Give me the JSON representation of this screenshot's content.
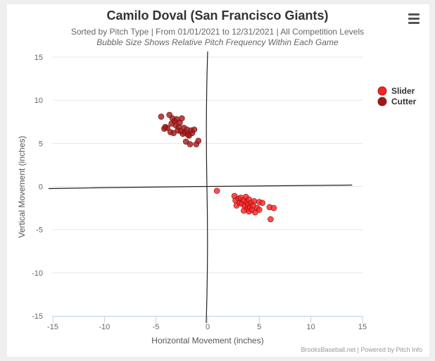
{
  "title": "Camilo Doval (San Francisco Giants)",
  "subtitle": "Sorted by Pitch Type | From 01/01/2021 to 12/31/2021 | All Competition Levels",
  "subtitle2": "Bubble Size Shows Relative Pitch Frequency Within Each Game",
  "credits": "BrooksBaseball.net | Powered by Pitch Info",
  "menu_icon": "hamburger-menu-icon",
  "chart_data": {
    "type": "scatter",
    "xlabel": "Horizontal Movement (inches)",
    "ylabel": "Vertical Movement (inches)",
    "xlim": [
      -15,
      15
    ],
    "ylim": [
      -15,
      15
    ],
    "xticks": [
      "-15",
      "-10",
      "-5",
      "0",
      "5",
      "10",
      "15"
    ],
    "yticks": [
      "15",
      "10",
      "5",
      "0",
      "-5",
      "-10",
      "-15"
    ],
    "legend_position": "top-right",
    "series": [
      {
        "name": "Slider",
        "color": "#ff2020",
        "points": [
          [
            0.9,
            -0.5
          ],
          [
            2.6,
            -1.1
          ],
          [
            2.7,
            -1.6
          ],
          [
            2.8,
            -2.2
          ],
          [
            3.0,
            -1.4
          ],
          [
            3.1,
            -1.9
          ],
          [
            3.2,
            -1.3
          ],
          [
            3.3,
            -2.0
          ],
          [
            3.5,
            -1.6
          ],
          [
            3.6,
            -2.3
          ],
          [
            3.7,
            -1.2
          ],
          [
            3.8,
            -1.8
          ],
          [
            3.8,
            -2.6
          ],
          [
            3.9,
            -2.1
          ],
          [
            4.0,
            -1.5
          ],
          [
            4.0,
            -2.9
          ],
          [
            4.1,
            -2.4
          ],
          [
            4.2,
            -1.9
          ],
          [
            4.3,
            -2.7
          ],
          [
            4.4,
            -2.2
          ],
          [
            4.5,
            -1.7
          ],
          [
            4.6,
            -3.0
          ],
          [
            4.8,
            -2.5
          ],
          [
            5.0,
            -1.8
          ],
          [
            5.0,
            -2.7
          ],
          [
            5.3,
            -1.9
          ],
          [
            6.0,
            -2.4
          ],
          [
            6.4,
            -2.5
          ],
          [
            6.1,
            -3.8
          ],
          [
            3.5,
            -2.8
          ]
        ]
      },
      {
        "name": "Cutter",
        "color": "#a01818",
        "points": [
          [
            -4.5,
            8.1
          ],
          [
            -4.2,
            6.7
          ],
          [
            -3.9,
            6.8
          ],
          [
            -3.7,
            8.3
          ],
          [
            -3.6,
            6.3
          ],
          [
            -3.5,
            7.3
          ],
          [
            -3.4,
            7.9
          ],
          [
            -3.3,
            6.2
          ],
          [
            -3.2,
            7.6
          ],
          [
            -3.1,
            7.1
          ],
          [
            -3.0,
            7.8
          ],
          [
            -2.9,
            6.5
          ],
          [
            -2.8,
            6.9
          ],
          [
            -2.7,
            7.4
          ],
          [
            -2.6,
            6.4
          ],
          [
            -2.5,
            7.9
          ],
          [
            -2.4,
            6.1
          ],
          [
            -2.3,
            6.8
          ],
          [
            -2.2,
            6.3
          ],
          [
            -2.1,
            5.2
          ],
          [
            -2.0,
            6.6
          ],
          [
            -1.9,
            6.0
          ],
          [
            -1.8,
            5.9
          ],
          [
            -1.7,
            4.9
          ],
          [
            -1.6,
            6.5
          ],
          [
            -1.5,
            6.2
          ],
          [
            -1.3,
            6.6
          ],
          [
            -1.1,
            4.9
          ],
          [
            -0.9,
            5.3
          ],
          [
            -4.1,
            6.9
          ]
        ]
      }
    ]
  }
}
